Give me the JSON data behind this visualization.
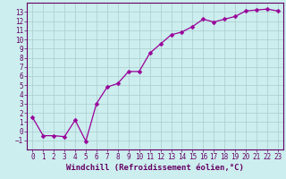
{
  "x": [
    0,
    1,
    2,
    3,
    4,
    5,
    6,
    7,
    8,
    9,
    10,
    11,
    12,
    13,
    14,
    15,
    16,
    17,
    18,
    19,
    20,
    21,
    22,
    23
  ],
  "y": [
    1.5,
    -0.5,
    -0.5,
    -0.6,
    1.2,
    -1.1,
    3.0,
    4.8,
    5.2,
    6.5,
    6.5,
    8.5,
    9.5,
    10.5,
    10.8,
    11.4,
    12.2,
    11.9,
    12.2,
    12.5,
    13.1,
    13.2,
    13.3,
    13.1
  ],
  "line_color": "#990099",
  "marker": "D",
  "marker_size": 2.5,
  "bg_color": "#cceeee",
  "grid_color": "#aacccc",
  "xlabel": "Windchill (Refroidissement éolien,°C)",
  "xlim": [
    -0.5,
    23.5
  ],
  "ylim": [
    -2,
    14
  ],
  "yticks": [
    -1,
    0,
    1,
    2,
    3,
    4,
    5,
    6,
    7,
    8,
    9,
    10,
    11,
    12,
    13
  ],
  "xticks": [
    0,
    1,
    2,
    3,
    4,
    5,
    6,
    7,
    8,
    9,
    10,
    11,
    12,
    13,
    14,
    15,
    16,
    17,
    18,
    19,
    20,
    21,
    22,
    23
  ],
  "font_color": "#660066",
  "tick_font_size": 5.5,
  "label_font_size": 6.5
}
